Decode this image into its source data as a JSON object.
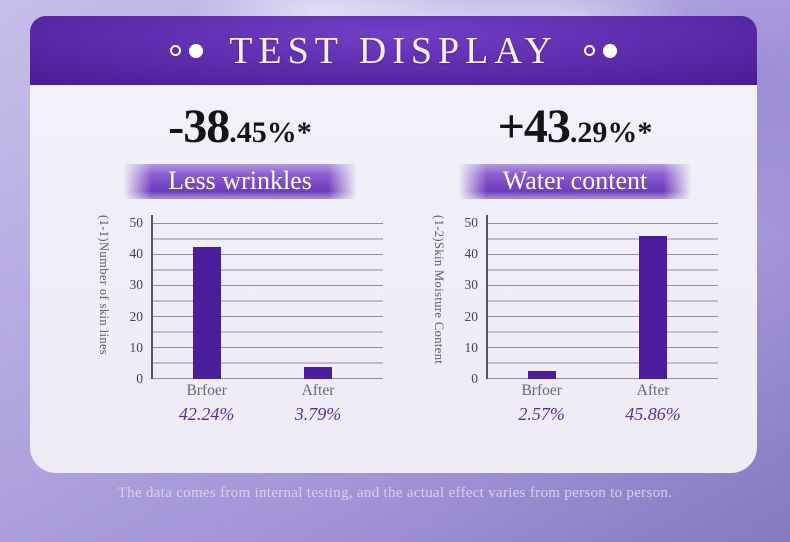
{
  "colors": {
    "banner_purple": "#4d1c96",
    "bar_purple": "#4a1d9c",
    "accent_purple": "#5b2da6",
    "card_bg": "#eeebf5",
    "grid_gray": "#8f8fa0"
  },
  "header": {
    "title": "TEST DISPLAY"
  },
  "chart_data": [
    {
      "type": "bar",
      "title": "-38.45%*",
      "headline": {
        "big": "-38",
        "small": ".45%*"
      },
      "subtitle": "Less wrinkles",
      "ylabel": "(1-1)Number of skin lines",
      "xlabel": "",
      "categories": [
        "Brfoer",
        "After"
      ],
      "values": [
        42.24,
        3.79
      ],
      "value_labels": [
        "42.24%",
        "3.79%"
      ],
      "yticks": [
        0,
        10,
        20,
        30,
        40,
        50
      ],
      "ylim": [
        0,
        50
      ],
      "grid": "horizontal gridlines every 5 units",
      "legend": "none"
    },
    {
      "type": "bar",
      "title": "+43.29%*",
      "headline": {
        "big": "+43",
        "small": ".29%*"
      },
      "subtitle": "Water content",
      "ylabel": "(1-2)Skin Moisture Content",
      "xlabel": "",
      "categories": [
        "Brfoer",
        "After"
      ],
      "values": [
        2.57,
        45.86
      ],
      "value_labels": [
        "2.57%",
        "45.86%"
      ],
      "yticks": [
        0,
        10,
        20,
        30,
        40,
        50
      ],
      "ylim": [
        0,
        50
      ],
      "grid": "horizontal gridlines every 5 units",
      "legend": "none"
    }
  ],
  "footer": {
    "note": "The data comes from internal testing, and the actual effect varies from person to person."
  }
}
